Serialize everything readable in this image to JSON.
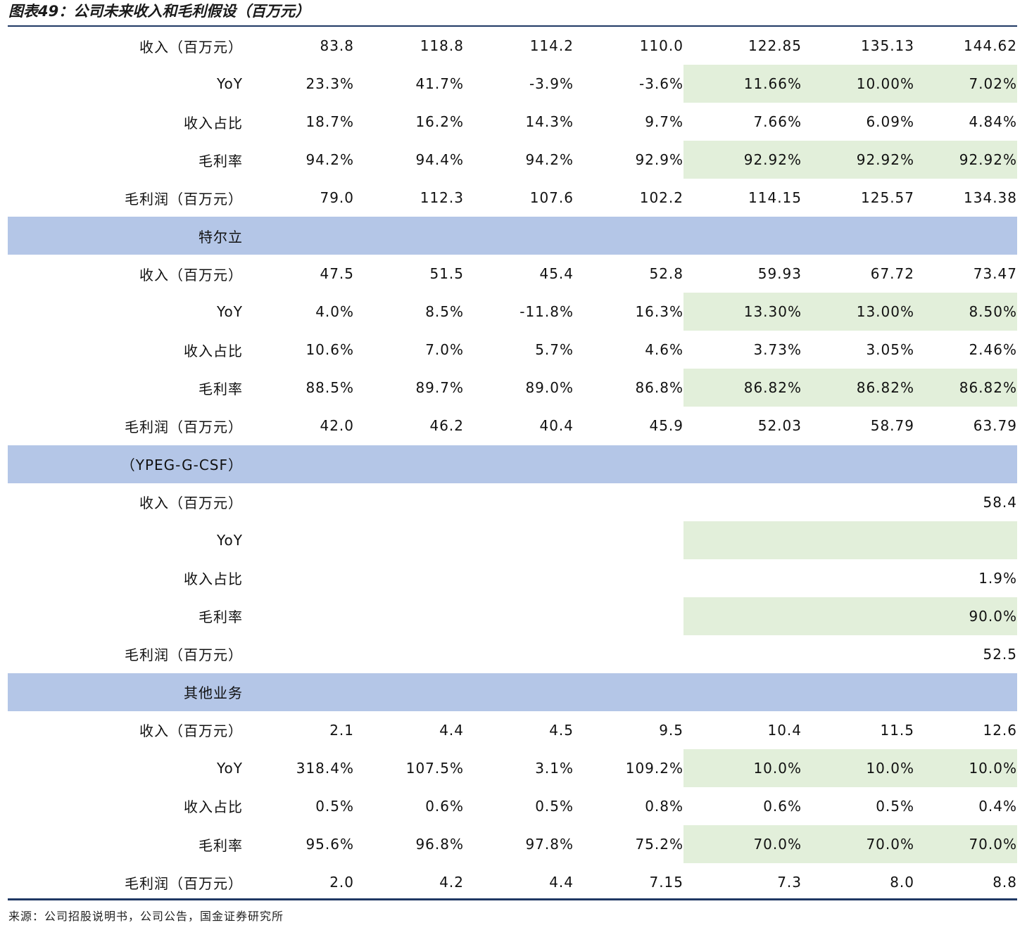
{
  "title": "图表49：公司未来收入和毛利假设（百万元）",
  "source": "来源：公司招股说明书，公司公告，国金证券研究所",
  "colors": {
    "section_header_bg": "#b4c6e7",
    "forecast_highlight_bg": "#e2efda",
    "rule": "#1f3864"
  },
  "rows": [
    {
      "type": "data",
      "label": "收入（百万元）",
      "values": [
        "83.8",
        "118.8",
        "114.2",
        "110.0",
        "122.85",
        "135.13",
        "144.62"
      ],
      "highlight": false
    },
    {
      "type": "data",
      "label": "YoY",
      "values": [
        "23.3%",
        "41.7%",
        "-3.9%",
        "-3.6%",
        "11.66%",
        "10.00%",
        "7.02%"
      ],
      "highlight": true
    },
    {
      "type": "data",
      "label": "收入占比",
      "values": [
        "18.7%",
        "16.2%",
        "14.3%",
        "9.7%",
        "7.66%",
        "6.09%",
        "4.84%"
      ],
      "highlight": false
    },
    {
      "type": "data",
      "label": "毛利率",
      "values": [
        "94.2%",
        "94.4%",
        "94.2%",
        "92.9%",
        "92.92%",
        "92.92%",
        "92.92%"
      ],
      "highlight": true
    },
    {
      "type": "data",
      "label": "毛利润（百万元）",
      "values": [
        "79.0",
        "112.3",
        "107.6",
        "102.2",
        "114.15",
        "125.57",
        "134.38"
      ],
      "highlight": false
    },
    {
      "type": "section",
      "label": "特尔立"
    },
    {
      "type": "data",
      "label": "收入（百万元）",
      "values": [
        "47.5",
        "51.5",
        "45.4",
        "52.8",
        "59.93",
        "67.72",
        "73.47"
      ],
      "highlight": false
    },
    {
      "type": "data",
      "label": "YoY",
      "values": [
        "4.0%",
        "8.5%",
        "-11.8%",
        "16.3%",
        "13.30%",
        "13.00%",
        "8.50%"
      ],
      "highlight": true
    },
    {
      "type": "data",
      "label": "收入占比",
      "values": [
        "10.6%",
        "7.0%",
        "5.7%",
        "4.6%",
        "3.73%",
        "3.05%",
        "2.46%"
      ],
      "highlight": false
    },
    {
      "type": "data",
      "label": "毛利率",
      "values": [
        "88.5%",
        "89.7%",
        "89.0%",
        "86.8%",
        "86.82%",
        "86.82%",
        "86.82%"
      ],
      "highlight": true
    },
    {
      "type": "data",
      "label": "毛利润（百万元）",
      "values": [
        "42.0",
        "46.2",
        "40.4",
        "45.9",
        "52.03",
        "58.79",
        "63.79"
      ],
      "highlight": false
    },
    {
      "type": "section",
      "label": "（YPEG-G-CSF）"
    },
    {
      "type": "data",
      "label": "收入（百万元）",
      "values": [
        "",
        "",
        "",
        "",
        "",
        "",
        "58.4"
      ],
      "highlight": false
    },
    {
      "type": "data",
      "label": "YoY",
      "values": [
        "",
        "",
        "",
        "",
        "",
        "",
        ""
      ],
      "highlight": true
    },
    {
      "type": "data",
      "label": "收入占比",
      "values": [
        "",
        "",
        "",
        "",
        "",
        "",
        "1.9%"
      ],
      "highlight": false
    },
    {
      "type": "data",
      "label": "毛利率",
      "values": [
        "",
        "",
        "",
        "",
        "",
        "",
        "90.0%"
      ],
      "highlight": true
    },
    {
      "type": "data",
      "label": "毛利润（百万元）",
      "values": [
        "",
        "",
        "",
        "",
        "",
        "",
        "52.5"
      ],
      "highlight": false
    },
    {
      "type": "section",
      "label": "其他业务"
    },
    {
      "type": "data",
      "label": "收入（百万元）",
      "values": [
        "2.1",
        "4.4",
        "4.5",
        "9.5",
        "10.4",
        "11.5",
        "12.6"
      ],
      "highlight": false
    },
    {
      "type": "data",
      "label": "YoY",
      "values": [
        "318.4%",
        "107.5%",
        "3.1%",
        "109.2%",
        "10.0%",
        "10.0%",
        "10.0%"
      ],
      "highlight": true
    },
    {
      "type": "data",
      "label": "收入占比",
      "values": [
        "0.5%",
        "0.6%",
        "0.5%",
        "0.8%",
        "0.6%",
        "0.5%",
        "0.4%"
      ],
      "highlight": false
    },
    {
      "type": "data",
      "label": "毛利率",
      "values": [
        "95.6%",
        "96.8%",
        "97.8%",
        "75.2%",
        "70.0%",
        "70.0%",
        "70.0%"
      ],
      "highlight": true
    },
    {
      "type": "data",
      "label": "毛利润（百万元）",
      "values": [
        "2.0",
        "4.2",
        "4.4",
        "7.15",
        "7.3",
        "8.0",
        "8.8"
      ],
      "highlight": false
    }
  ]
}
